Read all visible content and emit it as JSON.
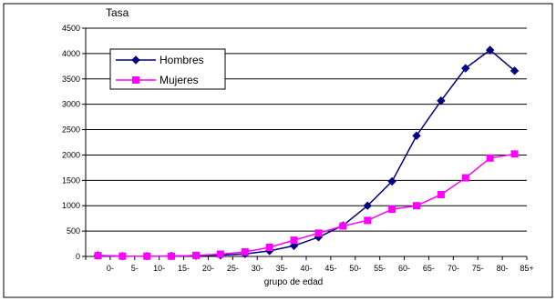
{
  "chart_data": {
    "type": "line",
    "title": "Tasa",
    "xlabel": "grupo de edad",
    "ylabel": "",
    "categories": [
      "0-",
      "5-",
      "10-",
      "15-",
      "20-",
      "25-",
      "30-",
      "35-",
      "40-",
      "45-",
      "50-",
      "55-",
      "60-",
      "65-",
      "70-",
      "75-",
      "80-",
      "85+"
    ],
    "ylim": [
      0,
      4500
    ],
    "yticks": [
      0,
      500,
      1000,
      1500,
      2000,
      2500,
      3000,
      3500,
      4000,
      4500
    ],
    "grid": true,
    "legend_position": "top-left",
    "series": [
      {
        "name": "Hombres",
        "color": "#000080",
        "marker": "diamond",
        "values": [
          20,
          5,
          5,
          10,
          15,
          25,
          50,
          110,
          210,
          380,
          610,
          1000,
          1480,
          2380,
          3070,
          3710,
          4070,
          3660
        ]
      },
      {
        "name": "Mujeres",
        "color": "#ff00ff",
        "marker": "square",
        "values": [
          15,
          5,
          5,
          5,
          20,
          45,
          90,
          180,
          320,
          460,
          600,
          710,
          930,
          1000,
          1220,
          1550,
          1940,
          2020
        ]
      }
    ]
  }
}
